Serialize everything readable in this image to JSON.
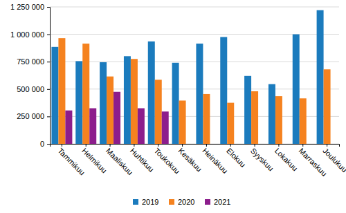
{
  "chart_data": {
    "type": "bar",
    "categories": [
      "Tammikuu",
      "Helmikuu",
      "Maaliskuu",
      "Huhtikuu",
      "Toukokuu",
      "Kesäkuu",
      "Heinäkuu",
      "Elokuu",
      "Syyskuu",
      "Lokakuu",
      "Marraskuu",
      "Joulukuu"
    ],
    "series": [
      {
        "name": "2019",
        "color": "#1b7bbd",
        "values": [
          885000,
          755000,
          745000,
          800000,
          935000,
          740000,
          915000,
          975000,
          620000,
          545000,
          1000000,
          1220000
        ]
      },
      {
        "name": "2020",
        "color": "#f5821f",
        "values": [
          965000,
          915000,
          615000,
          775000,
          585000,
          395000,
          455000,
          375000,
          480000,
          435000,
          415000,
          680000
        ]
      },
      {
        "name": "2021",
        "color": "#8c1d8c",
        "values": [
          305000,
          325000,
          475000,
          325000,
          295000,
          null,
          null,
          null,
          null,
          null,
          null,
          null
        ]
      }
    ],
    "ylim": [
      0,
      1250000
    ],
    "yticks": [
      0,
      {
        "value": 250000,
        "label": "250 000"
      },
      {
        "value": 500000,
        "label": "500 000"
      },
      {
        "value": 750000,
        "label": "750 000"
      },
      {
        "value": 1000000,
        "label": "1 000 000"
      },
      {
        "value": 1250000,
        "label": "1 250 000"
      }
    ],
    "grid": true,
    "legend": "bottom"
  }
}
